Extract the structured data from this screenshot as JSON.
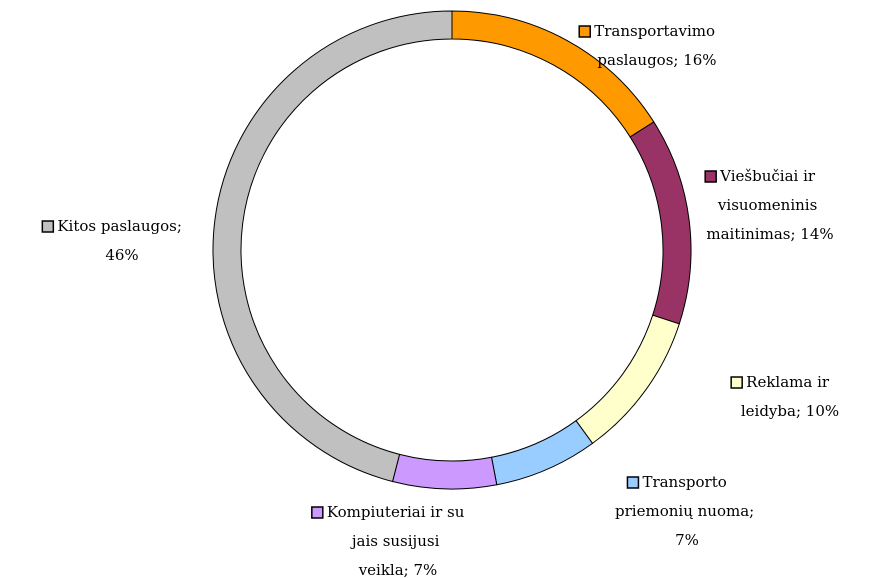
{
  "chart_data": {
    "type": "donut",
    "values": [
      16,
      14,
      10,
      7,
      7,
      46
    ],
    "value_labels": [
      "Transportavimo paslaugos; 16%",
      "Viešbučiai ir visuomeninis maitinimas; 14%",
      "Reklama ir leidyba; 10%",
      "Transporto priemonių nuoma; 7%",
      "Kompiuteriai ir su jais susijusi veikla; 7%",
      "Kitos paslaugos; 46%"
    ],
    "colors": [
      "#FF9900",
      "#993366",
      "#FFFFCC",
      "#99CCFF",
      "#CC99FF",
      "#C0C0C0"
    ]
  }
}
